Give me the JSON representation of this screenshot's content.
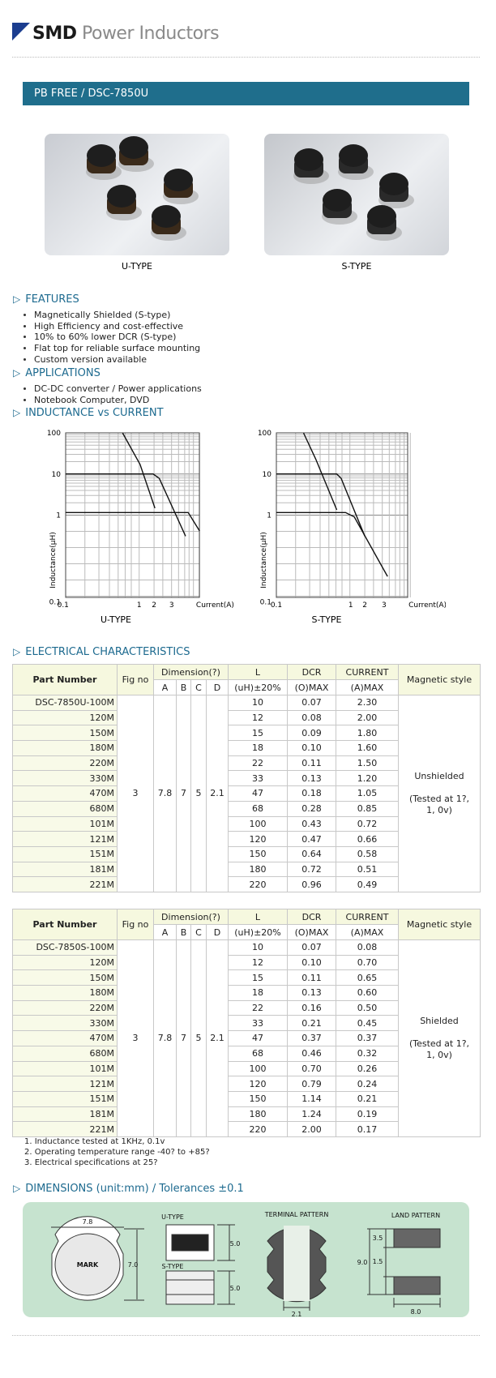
{
  "header": {
    "brand": "SMD",
    "title": "Power Inductors"
  },
  "banner": "PB FREE / DSC-7850U",
  "photos": [
    {
      "caption": "U-TYPE"
    },
    {
      "caption": "S-TYPE"
    }
  ],
  "features": {
    "heading": "FEATURES",
    "items": [
      "Magnetically Shielded (S-type)",
      "High Efficiency and cost-effective",
      "10% to 60% lower DCR (S-type)",
      "Flat top for reliable surface mounting",
      "Custom version available"
    ]
  },
  "applications": {
    "heading": "APPLICATIONS",
    "items": [
      "DC-DC converter / Power applications",
      "Notebook Computer, DVD"
    ]
  },
  "inductance": {
    "heading": "INDUCTANCE vs CURRENT",
    "graphs": [
      {
        "caption": "U-TYPE",
        "ylabel": "Inductance(μH)",
        "xlabel": "Current(A)",
        "yticks": [
          "100",
          "10",
          "1",
          "0.1"
        ],
        "xticks": [
          "0.1",
          "1",
          "2",
          "3"
        ]
      },
      {
        "caption": "S-TYPE",
        "ylabel": "Inductance(μH)",
        "xlabel": "Current(A)",
        "yticks": [
          "100",
          "10",
          "1",
          "0.1"
        ],
        "xticks": [
          "0.1",
          "1",
          "2",
          "3"
        ]
      }
    ]
  },
  "electrical": {
    "heading": "ELECTRICAL CHARACTERISTICS",
    "header": {
      "part": "Part Number",
      "fig": "Fig no",
      "dimension": "Dimension(?)",
      "dim_cols": [
        "A",
        "B",
        "C",
        "D"
      ],
      "l": "L",
      "l_unit": "(uH)±20%",
      "dcr": "DCR",
      "dcr_unit": "(O)MAX",
      "current": "CURRENT",
      "current_unit": "(A)MAX",
      "style": "Magnetic style"
    },
    "tables": [
      {
        "fig": "3",
        "dims": [
          "7.8",
          "7",
          "5",
          "2.1"
        ],
        "style": "Unshielded",
        "style_note": "(Tested at 1?, 1, 0v)",
        "rows": [
          [
            "DSC-7850U-100M",
            "10",
            "0.07",
            "2.30"
          ],
          [
            "120M",
            "12",
            "0.08",
            "2.00"
          ],
          [
            "150M",
            "15",
            "0.09",
            "1.80"
          ],
          [
            "180M",
            "18",
            "0.10",
            "1.60"
          ],
          [
            "220M",
            "22",
            "0.11",
            "1.50"
          ],
          [
            "330M",
            "33",
            "0.13",
            "1.20"
          ],
          [
            "470M",
            "47",
            "0.18",
            "1.05"
          ],
          [
            "680M",
            "68",
            "0.28",
            "0.85"
          ],
          [
            "101M",
            "100",
            "0.43",
            "0.72"
          ],
          [
            "121M",
            "120",
            "0.47",
            "0.66"
          ],
          [
            "151M",
            "150",
            "0.64",
            "0.58"
          ],
          [
            "181M",
            "180",
            "0.72",
            "0.51"
          ],
          [
            "221M",
            "220",
            "0.96",
            "0.49"
          ]
        ]
      },
      {
        "fig": "3",
        "dims": [
          "7.8",
          "7",
          "5",
          "2.1"
        ],
        "style": "Shielded",
        "style_note": "(Tested at 1?, 1, 0v)",
        "rows": [
          [
            "DSC-7850S-100M",
            "10",
            "0.07",
            "0.08"
          ],
          [
            "120M",
            "12",
            "0.10",
            "0.70"
          ],
          [
            "150M",
            "15",
            "0.11",
            "0.65"
          ],
          [
            "180M",
            "18",
            "0.13",
            "0.60"
          ],
          [
            "220M",
            "22",
            "0.16",
            "0.50"
          ],
          [
            "330M",
            "33",
            "0.21",
            "0.45"
          ],
          [
            "470M",
            "47",
            "0.37",
            "0.37"
          ],
          [
            "680M",
            "68",
            "0.46",
            "0.32"
          ],
          [
            "101M",
            "100",
            "0.70",
            "0.26"
          ],
          [
            "121M",
            "120",
            "0.79",
            "0.24"
          ],
          [
            "151M",
            "150",
            "1.14",
            "0.21"
          ],
          [
            "181M",
            "180",
            "1.24",
            "0.19"
          ],
          [
            "221M",
            "220",
            "2.00",
            "0.17"
          ]
        ]
      }
    ]
  },
  "notes": [
    "1. Inductance tested at 1KHz, 0.1v",
    "2. Operating temperature range -40? to +85?",
    "3. Electrical specifications at 25?"
  ],
  "dimensions": {
    "heading": "DIMENSIONS (unit:mm) / Tolerances ±0.1",
    "labels": [
      "7.8",
      "7.0",
      "MARK",
      "U-TYPE",
      "5.0",
      "S-TYPE",
      "5.0",
      "TERMINAL PATTERN",
      "2.1",
      "LAND PATTERN",
      "3.5",
      "1.5",
      "9.0",
      "8.0"
    ]
  }
}
